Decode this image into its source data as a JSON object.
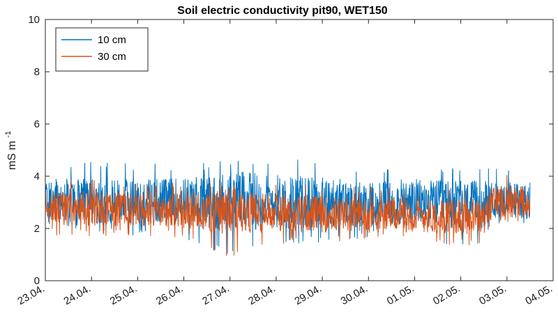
{
  "chart_data": {
    "type": "line",
    "title": "Soil electric conductivity pit90, WET150",
    "ylabel": "mS m",
    "ylabel_exponent": "-1",
    "ylim": [
      0,
      10
    ],
    "yticks": [
      "0",
      "2",
      "4",
      "6",
      "8",
      "10"
    ],
    "xlim_days": [
      0,
      11
    ],
    "xticks": [
      "23.04.",
      "24.04.",
      "25.04.",
      "26.04.",
      "27.04.",
      "28.04.",
      "29.04.",
      "30.04.",
      "01.05.",
      "02.05.",
      "03.05.",
      "04.05."
    ],
    "legend_position": "top-left",
    "grid": false,
    "series": [
      {
        "name": "10 cm",
        "color": "#0072BD",
        "x": [
          0,
          1,
          2,
          3,
          4,
          5,
          6,
          7,
          8,
          9,
          9.5,
          9.7,
          10,
          10.5
        ],
        "mean": [
          3.05,
          3.05,
          3.05,
          3.05,
          3.05,
          3.05,
          3.0,
          2.95,
          3.0,
          2.9,
          2.9,
          3.05,
          3.1,
          3.05
        ],
        "min": [
          1.7,
          1.9,
          1.7,
          1.6,
          0.9,
          1.4,
          1.4,
          1.6,
          1.6,
          1.3,
          1.3,
          2.1,
          2.2,
          2.2
        ],
        "max": [
          4.7,
          4.6,
          4.5,
          4.5,
          4.6,
          4.8,
          4.5,
          4.4,
          4.5,
          4.3,
          4.3,
          4.4,
          4.5,
          4.5
        ]
      },
      {
        "name": "30 cm",
        "color": "#D95319",
        "x": [
          0,
          1,
          2,
          3,
          4,
          5,
          6,
          7,
          8,
          9,
          9.5,
          9.7,
          10,
          10.5
        ],
        "mean": [
          2.8,
          2.75,
          2.7,
          2.7,
          2.65,
          2.6,
          2.55,
          2.55,
          2.5,
          2.45,
          2.45,
          3.05,
          3.1,
          3.0
        ],
        "min": [
          1.7,
          1.7,
          1.7,
          1.6,
          0.8,
          1.4,
          1.4,
          1.6,
          1.5,
          1.3,
          1.3,
          2.2,
          2.2,
          2.2
        ],
        "max": [
          3.9,
          3.9,
          3.8,
          3.8,
          3.8,
          3.7,
          3.7,
          3.6,
          3.6,
          3.5,
          3.5,
          4.3,
          4.3,
          4.2
        ]
      }
    ]
  }
}
